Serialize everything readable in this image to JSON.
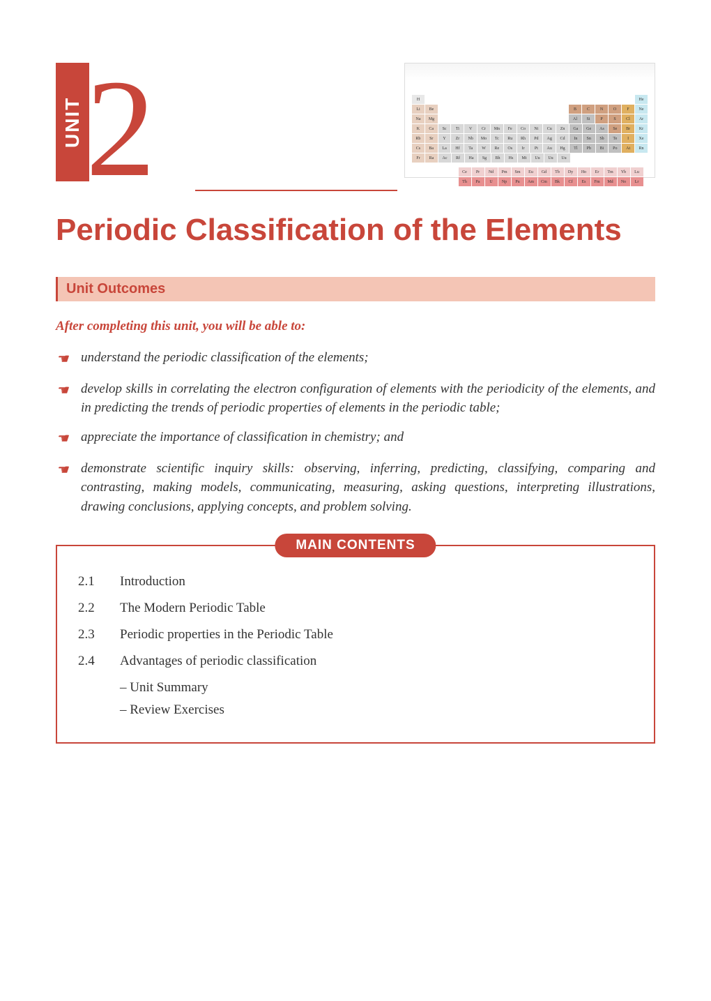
{
  "unit": {
    "label": "UNIT",
    "number": "2"
  },
  "title": "Periodic Classification of the Elements",
  "outcomes_header": "Unit  Outcomes",
  "intro_text": "After completing this unit, you will be able to:",
  "outcomes": [
    "understand the periodic classification of the elements;",
    "develop skills in correlating the electron configuration of elements with the periodicity of the elements, and in predicting the trends of periodic properties of elements in the periodic table;",
    "appreciate the importance of classification in chemistry; and",
    "demonstrate scientific inquiry skills: observing, inferring, predicting, classifying, comparing and contrasting, making models, communicating, measuring, asking questions, interpreting illustrations, drawing conclusions, applying concepts, and problem solving."
  ],
  "contents_label": "MAIN CONTENTS",
  "contents": [
    {
      "num": "2.1",
      "text": "Introduction"
    },
    {
      "num": "2.2",
      "text": "The Modern Periodic Table"
    },
    {
      "num": "2.3",
      "text": "Periodic properties in the Periodic Table"
    },
    {
      "num": "2.4",
      "text": "Advantages of periodic classification"
    }
  ],
  "sub_contents": [
    "– Unit Summary",
    "– Review Exercises"
  ],
  "periodic_table": {
    "rows": [
      {
        "cells": [
          {
            "t": "H",
            "c": "#e8e8e8"
          }
        ],
        "right_cells": [
          {
            "t": "He",
            "c": "#c8e8f0"
          }
        ]
      },
      {
        "cells": [
          {
            "t": "Li",
            "c": "#e8d0c0"
          },
          {
            "t": "Be",
            "c": "#e8d0c0"
          }
        ],
        "right_cells": [
          {
            "t": "B",
            "c": "#d0a080"
          },
          {
            "t": "C",
            "c": "#d0a080"
          },
          {
            "t": "N",
            "c": "#d0a080"
          },
          {
            "t": "O",
            "c": "#d0a080"
          },
          {
            "t": "F",
            "c": "#e0b060"
          },
          {
            "t": "Ne",
            "c": "#c8e8f0"
          }
        ]
      },
      {
        "cells": [
          {
            "t": "Na",
            "c": "#e8d0c0"
          },
          {
            "t": "Mg",
            "c": "#e8d0c0"
          }
        ],
        "right_cells": [
          {
            "t": "Al",
            "c": "#c0c0c0"
          },
          {
            "t": "Si",
            "c": "#c0c0c0"
          },
          {
            "t": "P",
            "c": "#d0a080"
          },
          {
            "t": "S",
            "c": "#d0a080"
          },
          {
            "t": "Cl",
            "c": "#e0b060"
          },
          {
            "t": "Ar",
            "c": "#c8e8f0"
          }
        ]
      },
      {
        "cells": [
          {
            "t": "K",
            "c": "#e8d0c0"
          },
          {
            "t": "Ca",
            "c": "#e8d0c0"
          },
          {
            "t": "Sc",
            "c": "#d8d8d8"
          },
          {
            "t": "Ti",
            "c": "#d8d8d8"
          },
          {
            "t": "V",
            "c": "#d8d8d8"
          },
          {
            "t": "Cr",
            "c": "#d8d8d8"
          },
          {
            "t": "Mn",
            "c": "#d8d8d8"
          },
          {
            "t": "Fe",
            "c": "#d8d8d8"
          },
          {
            "t": "Co",
            "c": "#d8d8d8"
          },
          {
            "t": "Ni",
            "c": "#d8d8d8"
          },
          {
            "t": "Cu",
            "c": "#d8d8d8"
          },
          {
            "t": "Zn",
            "c": "#d8d8d8"
          },
          {
            "t": "Ga",
            "c": "#c0c0c0"
          },
          {
            "t": "Ge",
            "c": "#c0c0c0"
          },
          {
            "t": "As",
            "c": "#c0c0c0"
          },
          {
            "t": "Se",
            "c": "#d0a080"
          },
          {
            "t": "Br",
            "c": "#e0b060"
          },
          {
            "t": "Kr",
            "c": "#c8e8f0"
          }
        ]
      },
      {
        "cells": [
          {
            "t": "Rb",
            "c": "#e8d0c0"
          },
          {
            "t": "Sr",
            "c": "#e8d0c0"
          },
          {
            "t": "Y",
            "c": "#d8d8d8"
          },
          {
            "t": "Zr",
            "c": "#d8d8d8"
          },
          {
            "t": "Nb",
            "c": "#d8d8d8"
          },
          {
            "t": "Mo",
            "c": "#d8d8d8"
          },
          {
            "t": "Tc",
            "c": "#d8d8d8"
          },
          {
            "t": "Ru",
            "c": "#d8d8d8"
          },
          {
            "t": "Rh",
            "c": "#d8d8d8"
          },
          {
            "t": "Pd",
            "c": "#d8d8d8"
          },
          {
            "t": "Ag",
            "c": "#d8d8d8"
          },
          {
            "t": "Cd",
            "c": "#d8d8d8"
          },
          {
            "t": "In",
            "c": "#c0c0c0"
          },
          {
            "t": "Sn",
            "c": "#c0c0c0"
          },
          {
            "t": "Sb",
            "c": "#c0c0c0"
          },
          {
            "t": "Te",
            "c": "#c0c0c0"
          },
          {
            "t": "I",
            "c": "#e0b060"
          },
          {
            "t": "Xe",
            "c": "#c8e8f0"
          }
        ]
      },
      {
        "cells": [
          {
            "t": "Cs",
            "c": "#e8d0c0"
          },
          {
            "t": "Ba",
            "c": "#e8d0c0"
          },
          {
            "t": "La",
            "c": "#d8d8d8"
          },
          {
            "t": "Hf",
            "c": "#d8d8d8"
          },
          {
            "t": "Ta",
            "c": "#d8d8d8"
          },
          {
            "t": "W",
            "c": "#d8d8d8"
          },
          {
            "t": "Re",
            "c": "#d8d8d8"
          },
          {
            "t": "Os",
            "c": "#d8d8d8"
          },
          {
            "t": "Ir",
            "c": "#d8d8d8"
          },
          {
            "t": "Pt",
            "c": "#d8d8d8"
          },
          {
            "t": "Au",
            "c": "#d8d8d8"
          },
          {
            "t": "Hg",
            "c": "#d8d8d8"
          },
          {
            "t": "Tl",
            "c": "#c0c0c0"
          },
          {
            "t": "Pb",
            "c": "#c0c0c0"
          },
          {
            "t": "Bi",
            "c": "#c0c0c0"
          },
          {
            "t": "Po",
            "c": "#c0c0c0"
          },
          {
            "t": "At",
            "c": "#e0b060"
          },
          {
            "t": "Rn",
            "c": "#c8e8f0"
          }
        ]
      },
      {
        "cells": [
          {
            "t": "Fr",
            "c": "#e8d0c0"
          },
          {
            "t": "Ra",
            "c": "#e8d0c0"
          },
          {
            "t": "Ac",
            "c": "#d8d8d8"
          },
          {
            "t": "Rf",
            "c": "#d8d8d8"
          },
          {
            "t": "Ha",
            "c": "#d8d8d8"
          },
          {
            "t": "Sg",
            "c": "#d8d8d8"
          },
          {
            "t": "Bh",
            "c": "#d8d8d8"
          },
          {
            "t": "Hs",
            "c": "#d8d8d8"
          },
          {
            "t": "Mt",
            "c": "#d8d8d8"
          },
          {
            "t": "Uu",
            "c": "#d8d8d8"
          },
          {
            "t": "Uu",
            "c": "#d8d8d8"
          },
          {
            "t": "Uu",
            "c": "#d8d8d8"
          }
        ]
      }
    ],
    "lanthanides": [
      {
        "t": "Ce",
        "c": "#f0d0d0"
      },
      {
        "t": "Pr",
        "c": "#f0d0d0"
      },
      {
        "t": "Nd",
        "c": "#f0d0d0"
      },
      {
        "t": "Pm",
        "c": "#f0d0d0"
      },
      {
        "t": "Sm",
        "c": "#f0d0d0"
      },
      {
        "t": "Eu",
        "c": "#f0d0d0"
      },
      {
        "t": "Gd",
        "c": "#f0d0d0"
      },
      {
        "t": "Tb",
        "c": "#f0d0d0"
      },
      {
        "t": "Dy",
        "c": "#f0d0d0"
      },
      {
        "t": "Ho",
        "c": "#f0d0d0"
      },
      {
        "t": "Er",
        "c": "#f0d0d0"
      },
      {
        "t": "Tm",
        "c": "#f0d0d0"
      },
      {
        "t": "Yb",
        "c": "#f0d0d0"
      },
      {
        "t": "Lu",
        "c": "#f0d0d0"
      }
    ],
    "actinides": [
      {
        "t": "Th",
        "c": "#e89090"
      },
      {
        "t": "Pa",
        "c": "#e89090"
      },
      {
        "t": "U",
        "c": "#e89090"
      },
      {
        "t": "Np",
        "c": "#e89090"
      },
      {
        "t": "Pu",
        "c": "#e89090"
      },
      {
        "t": "Am",
        "c": "#e89090"
      },
      {
        "t": "Cm",
        "c": "#e89090"
      },
      {
        "t": "Bk",
        "c": "#e89090"
      },
      {
        "t": "Cf",
        "c": "#e89090"
      },
      {
        "t": "Es",
        "c": "#e89090"
      },
      {
        "t": "Fm",
        "c": "#e89090"
      },
      {
        "t": "Md",
        "c": "#e89090"
      },
      {
        "t": "No",
        "c": "#e89090"
      },
      {
        "t": "Lr",
        "c": "#e89090"
      }
    ]
  },
  "colors": {
    "primary": "#c8463a",
    "outcomes_bg": "#f4c5b5",
    "text": "#333333"
  }
}
